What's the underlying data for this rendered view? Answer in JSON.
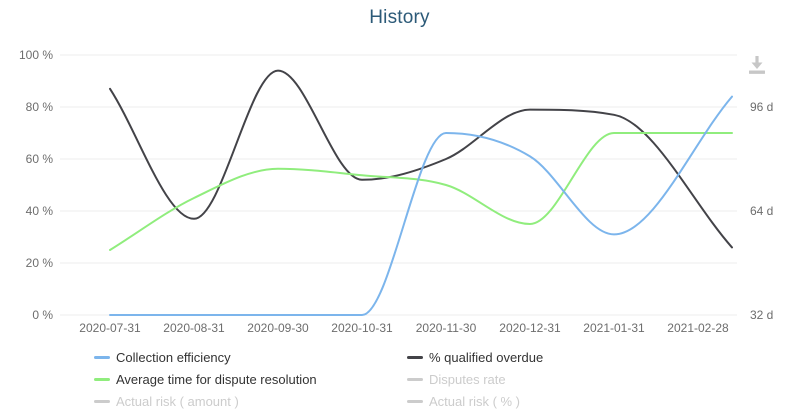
{
  "title": "History",
  "toolbar": {
    "download_tooltip": "Download"
  },
  "chart_data": {
    "type": "line",
    "title": "History",
    "smooth": true,
    "grid": "horizontal-only",
    "legend_position": "bottom",
    "categories": [
      "2020-07-31",
      "2020-08-31",
      "2020-09-30",
      "2020-10-31",
      "2020-11-30",
      "2020-12-31",
      "2021-01-31",
      "2021-02-28"
    ],
    "left_axis": {
      "unit": "%",
      "min": 0,
      "max": 100,
      "ticks": [
        0,
        20,
        40,
        60,
        80,
        100
      ],
      "tick_labels": [
        "0 %",
        "20 %",
        "40 %",
        "60 %",
        "80 %",
        "100 %"
      ]
    },
    "right_axis": {
      "unit": "d",
      "ticks": [
        32,
        64,
        96
      ],
      "tick_labels": [
        "32 d",
        "64 d",
        "96 d"
      ],
      "note": "32 d aligns with 0 %, 64 d with 40 %, 96 d with 80 %"
    },
    "series": [
      {
        "name": "Collection efficiency",
        "color": "#7cb5ec",
        "axis": "left",
        "unit": "%",
        "enabled": true,
        "values": [
          0,
          0,
          0,
          0,
          70,
          61,
          31,
          84
        ]
      },
      {
        "name": "% qualified overdue",
        "color": "#434348",
        "axis": "left",
        "unit": "%",
        "enabled": true,
        "values": [
          87,
          37,
          94,
          52,
          60,
          79,
          77,
          26
        ]
      },
      {
        "name": "Average time for dispute resolution",
        "color": "#90ed7d",
        "axis": "right",
        "unit": "d",
        "enabled": true,
        "values": [
          52,
          68,
          77,
          75,
          72,
          60,
          88,
          88
        ]
      },
      {
        "name": "Disputes rate",
        "color": "#cccccc",
        "enabled": false,
        "values": []
      },
      {
        "name": "Actual risk ( amount )",
        "color": "#cccccc",
        "enabled": false,
        "values": []
      },
      {
        "name": "Actual risk ( % )",
        "color": "#cccccc",
        "enabled": false,
        "values": []
      }
    ]
  },
  "legend": {
    "column1": [
      {
        "label": "Collection efficiency",
        "color": "#7cb5ec",
        "enabled": true
      },
      {
        "label": "Average time for dispute resolution",
        "color": "#90ed7d",
        "enabled": true
      },
      {
        "label": "Actual risk ( amount )",
        "color": "#cccccc",
        "enabled": false
      }
    ],
    "column2": [
      {
        "label": "% qualified overdue",
        "color": "#434348",
        "enabled": true
      },
      {
        "label": "Disputes rate",
        "color": "#cccccc",
        "enabled": false
      },
      {
        "label": "Actual risk ( % )",
        "color": "#cccccc",
        "enabled": false
      }
    ]
  },
  "colors": {
    "title": "#2c5a78",
    "axis_text": "#6d6d6d",
    "gridline": "#ececec",
    "disabled": "#cccccc",
    "download_icon": "#c7c7c7"
  }
}
